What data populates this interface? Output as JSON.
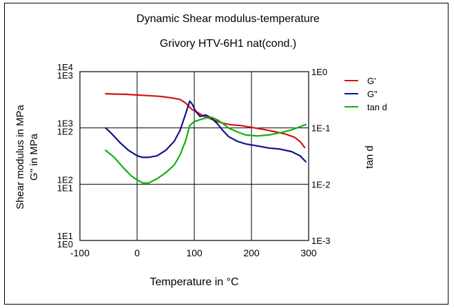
{
  "chart_data": {
    "type": "line",
    "title": "Dynamic Shear modulus-temperature",
    "subtitle": "Grivory HTV-6H1 nat(cond.)",
    "xlabel": "Temperature in °C",
    "ylabel_outer": "Shear modulus in MPa",
    "ylabel_inner": "G'' in MPa",
    "y2label": "tan d",
    "xlim": [
      -100,
      300
    ],
    "x_ticks": [
      "-100",
      "0",
      "100",
      "200",
      "300"
    ],
    "x_tick_values": [
      -100,
      0,
      100,
      200,
      300
    ],
    "y_left_ticks": [
      {
        "upper": "1E4",
        "lower": "1E3",
        "level": 3
      },
      {
        "upper": "1E3",
        "lower": "1E2",
        "level": 2
      },
      {
        "upper": "1E2",
        "lower": "1E1",
        "level": 1
      },
      {
        "upper": "1E1",
        "lower": "1E0",
        "level": 0
      }
    ],
    "y_right_ticks": [
      {
        "label": "1E0",
        "level": 3
      },
      {
        "label": "1E-1",
        "level": 2
      },
      {
        "label": "1E-2",
        "level": 1
      },
      {
        "label": "1E-3",
        "level": 0
      }
    ],
    "grid": true,
    "legend_position": "right",
    "series": [
      {
        "name": "G'",
        "color": "#d91010",
        "axis": "left-outer (Shear modulus, MPa)",
        "x": [
          -55,
          -40,
          -20,
          0,
          20,
          40,
          60,
          75,
          85,
          95,
          105,
          115,
          125,
          135,
          150,
          165,
          180,
          200,
          220,
          240,
          260,
          275,
          285,
          293
        ],
        "y": [
          3000,
          2950,
          2900,
          2800,
          2700,
          2600,
          2400,
          2200,
          1800,
          1300,
          1100,
          900,
          800,
          700,
          600,
          550,
          530,
          480,
          430,
          380,
          330,
          280,
          220,
          160
        ]
      },
      {
        "name": "G\"",
        "color": "#10108c",
        "axis": "left-inner (G'' in MPa)",
        "x": [
          -55,
          -45,
          -30,
          -15,
          0,
          10,
          20,
          35,
          50,
          65,
          75,
          85,
          92,
          97,
          102,
          110,
          120,
          130,
          140,
          150,
          160,
          175,
          190,
          210,
          230,
          250,
          270,
          285,
          295
        ],
        "y": [
          100,
          80,
          55,
          40,
          32,
          30,
          30,
          32,
          40,
          58,
          90,
          180,
          300,
          260,
          200,
          160,
          170,
          150,
          120,
          90,
          70,
          58,
          52,
          48,
          44,
          42,
          38,
          32,
          25
        ]
      },
      {
        "name": "tan d",
        "color": "#10b010",
        "axis": "right (tan d)",
        "x": [
          -55,
          -40,
          -25,
          -10,
          0,
          10,
          20,
          35,
          50,
          65,
          75,
          85,
          92,
          100,
          110,
          120,
          130,
          140,
          150,
          160,
          175,
          190,
          210,
          230,
          250,
          270,
          285,
          295
        ],
        "y": [
          0.04,
          0.03,
          0.02,
          0.014,
          0.012,
          0.0105,
          0.0105,
          0.0125,
          0.016,
          0.022,
          0.033,
          0.06,
          0.11,
          0.13,
          0.14,
          0.15,
          0.155,
          0.14,
          0.12,
          0.1,
          0.085,
          0.075,
          0.072,
          0.075,
          0.082,
          0.092,
          0.105,
          0.115
        ]
      }
    ]
  }
}
